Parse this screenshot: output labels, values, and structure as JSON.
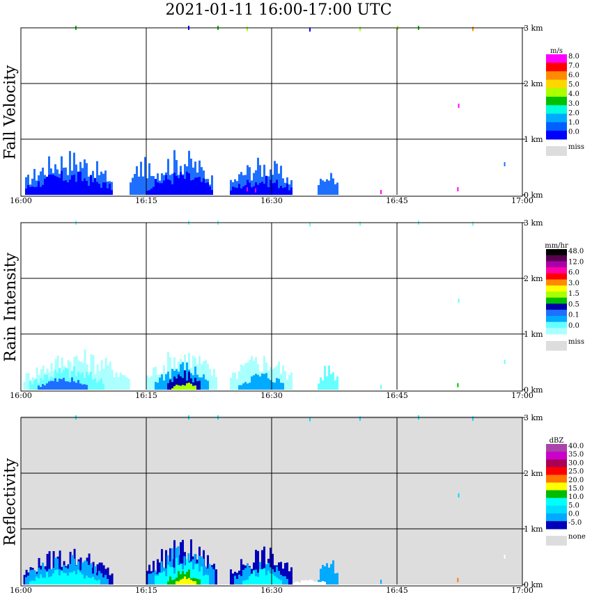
{
  "title": "2021-01-11   16:00-17:00 UTC",
  "chart_data": [
    {
      "type": "heatmap",
      "name": "Fall Velocity",
      "x_range": [
        "16:00",
        "17:00"
      ],
      "x_ticks": [
        "16:00",
        "16:15",
        "16:30",
        "16:45",
        "17:00"
      ],
      "y_ticks": [
        "3 km",
        "2 km",
        "1 km",
        "0 km"
      ],
      "ylim": [
        0,
        3.5
      ],
      "background": "#ffffff",
      "colorbar": {
        "unit": "m/s",
        "labels": [
          "8.0",
          "7.0",
          "6.0",
          "5.0",
          "4.0",
          "3.0",
          "2.0",
          "1.0",
          "0.0"
        ],
        "colors": [
          "#ff00ff",
          "#ff0000",
          "#ff8c00",
          "#ffd700",
          "#aaff00",
          "#00c000",
          "#00ffdd",
          "#00aaff",
          "#0060ff",
          "#0000ff"
        ],
        "extra_label": "miss",
        "extra_color": "#dddddd"
      },
      "blobs": [
        {
          "t0": 0.5,
          "t1": 10.8,
          "h": 0.85,
          "color": "#1f6fff"
        },
        {
          "t0": 0.5,
          "t1": 10.8,
          "h": 0.45,
          "color": "#0000ff"
        },
        {
          "t0": 13.0,
          "t1": 16.0,
          "h": 0.7,
          "color": "#1f6fff"
        },
        {
          "t0": 15.0,
          "t1": 23.0,
          "h": 0.85,
          "color": "#1f6fff"
        },
        {
          "t0": 15.0,
          "t1": 23.0,
          "h": 0.45,
          "color": "#0000ff"
        },
        {
          "t0": 25.0,
          "t1": 32.5,
          "h": 0.7,
          "color": "#1f6fff"
        },
        {
          "t0": 25.0,
          "t1": 32.5,
          "h": 0.35,
          "color": "#0000ff"
        },
        {
          "t0": 35.5,
          "t1": 38.0,
          "h": 0.5,
          "color": "#1f6fff"
        }
      ],
      "specks": [
        {
          "t": 6.5,
          "h": 3.0,
          "color": "#00c000"
        },
        {
          "t": 20.0,
          "h": 3.0,
          "color": "#0000ff"
        },
        {
          "t": 23.5,
          "h": 3.0,
          "color": "#00c000"
        },
        {
          "t": 27.0,
          "h": 2.98,
          "color": "#aaff00"
        },
        {
          "t": 34.5,
          "h": 2.97,
          "color": "#0000ff"
        },
        {
          "t": 40.5,
          "h": 2.98,
          "color": "#aaff00"
        },
        {
          "t": 45.0,
          "h": 3.0,
          "color": "#aaff00"
        },
        {
          "t": 47.5,
          "h": 3.0,
          "color": "#00c000"
        },
        {
          "t": 52.3,
          "h": 1.6,
          "color": "#ff00ff"
        },
        {
          "t": 54.0,
          "h": 2.98,
          "color": "#ff8c00"
        },
        {
          "t": 57.8,
          "h": 0.55,
          "color": "#1f6fff"
        },
        {
          "t": 43.0,
          "h": 0.05,
          "color": "#ff00ff"
        },
        {
          "t": 52.2,
          "h": 0.1,
          "color": "#ff00ff"
        },
        {
          "t": 27.0,
          "h": 0.1,
          "color": "#ff00ff"
        },
        {
          "t": 28.0,
          "h": 0.08,
          "color": "#ff00ff"
        }
      ]
    },
    {
      "type": "heatmap",
      "name": "Rain Intensity",
      "x_range": [
        "16:00",
        "17:00"
      ],
      "x_ticks": [
        "16:00",
        "16:15",
        "16:30",
        "16:45",
        "17:00"
      ],
      "y_ticks": [
        "3 km",
        "2 km",
        "1 km",
        "0 km"
      ],
      "ylim": [
        0,
        3.5
      ],
      "background": "#ffffff",
      "colorbar": {
        "unit": "mm/hr",
        "labels": [
          "48.0",
          "12.0",
          "6.0",
          "3.0",
          "1.5",
          "0.5",
          "0.1",
          "0.0"
        ],
        "colors": [
          "#000000",
          "#5a0050",
          "#aa00aa",
          "#ff00aa",
          "#ff0000",
          "#ff8c00",
          "#ffff00",
          "#aaff00",
          "#00c000",
          "#0000aa",
          "#1f6fff",
          "#00aaff",
          "#66ffff",
          "#aaffff"
        ],
        "extra_label": "miss",
        "extra_color": "#dddddd"
      },
      "blobs": [
        {
          "t0": 0.3,
          "t1": 13.0,
          "h": 0.75,
          "color": "#aaffff"
        },
        {
          "t0": 1.0,
          "t1": 10.0,
          "h": 0.45,
          "color": "#66ffff"
        },
        {
          "t0": 2.0,
          "t1": 8.0,
          "h": 0.25,
          "color": "#1f6fff"
        },
        {
          "t0": 15.0,
          "t1": 23.5,
          "h": 0.8,
          "color": "#aaffff"
        },
        {
          "t0": 16.0,
          "t1": 22.5,
          "h": 0.55,
          "color": "#00aaff"
        },
        {
          "t0": 17.5,
          "t1": 21.5,
          "h": 0.35,
          "color": "#0000aa"
        },
        {
          "t0": 18.0,
          "t1": 21.0,
          "h": 0.15,
          "color": "#aaff00"
        },
        {
          "t0": 25.0,
          "t1": 32.5,
          "h": 0.7,
          "color": "#aaffff"
        },
        {
          "t0": 26.0,
          "t1": 31.5,
          "h": 0.35,
          "color": "#00aaff"
        },
        {
          "t0": 35.5,
          "t1": 38.0,
          "h": 0.5,
          "color": "#66ffff"
        }
      ],
      "specks": [
        {
          "t": 6.5,
          "h": 3.0,
          "color": "#66ffff"
        },
        {
          "t": 20.0,
          "h": 3.0,
          "color": "#66ffff"
        },
        {
          "t": 23.5,
          "h": 3.0,
          "color": "#66ffff"
        },
        {
          "t": 34.5,
          "h": 2.97,
          "color": "#66ffff"
        },
        {
          "t": 40.5,
          "h": 2.98,
          "color": "#66ffff"
        },
        {
          "t": 47.5,
          "h": 3.0,
          "color": "#66ffff"
        },
        {
          "t": 54.0,
          "h": 2.98,
          "color": "#66ffff"
        },
        {
          "t": 52.3,
          "h": 1.6,
          "color": "#66ffff"
        },
        {
          "t": 57.8,
          "h": 0.5,
          "color": "#66ffff"
        },
        {
          "t": 43.0,
          "h": 0.05,
          "color": "#66ffff"
        },
        {
          "t": 52.2,
          "h": 0.08,
          "color": "#00c000"
        }
      ]
    },
    {
      "type": "heatmap",
      "name": "Reflectivity",
      "x_range": [
        "16:00",
        "17:00"
      ],
      "x_ticks": [
        "16:00",
        "16:15",
        "16:30",
        "16:45",
        "17:00"
      ],
      "y_ticks": [
        "3 km",
        "2 km",
        "1 km",
        "0 km"
      ],
      "ylim": [
        0,
        3.5
      ],
      "background": "#dddddd",
      "colorbar": {
        "unit": "dBZ",
        "labels": [
          "40.0",
          "35.0",
          "30.0",
          "25.0",
          "20.0",
          "15.0",
          "10.0",
          "5.0",
          "0.0",
          "-5.0"
        ],
        "colors": [
          "#aa44aa",
          "#cc00cc",
          "#aa0055",
          "#ff0000",
          "#ff7700",
          "#ffff00",
          "#00bb00",
          "#00ffff",
          "#00ddff",
          "#00aaff",
          "#0000bb"
        ],
        "extra_label": "none",
        "extra_color": "#dddddd"
      },
      "blobs": [
        {
          "t0": 0.3,
          "t1": 10.8,
          "h": 0.7,
          "color": "#0000bb"
        },
        {
          "t0": 0.5,
          "t1": 10.5,
          "h": 0.55,
          "color": "#00aaff"
        },
        {
          "t0": 1.0,
          "t1": 9.5,
          "h": 0.3,
          "color": "#00ffff"
        },
        {
          "t0": 15.0,
          "t1": 23.5,
          "h": 0.85,
          "color": "#0000bb"
        },
        {
          "t0": 15.2,
          "t1": 23.0,
          "h": 0.7,
          "color": "#00aaff"
        },
        {
          "t0": 16.0,
          "t1": 22.5,
          "h": 0.5,
          "color": "#00ffff"
        },
        {
          "t0": 17.5,
          "t1": 21.5,
          "h": 0.3,
          "color": "#00bb00"
        },
        {
          "t0": 18.5,
          "t1": 21.0,
          "h": 0.15,
          "color": "#ffff00"
        },
        {
          "t0": 25.0,
          "t1": 32.5,
          "h": 0.7,
          "color": "#0000bb"
        },
        {
          "t0": 25.5,
          "t1": 32.0,
          "h": 0.5,
          "color": "#00aaff"
        },
        {
          "t0": 26.5,
          "t1": 31.0,
          "h": 0.3,
          "color": "#00ffff"
        },
        {
          "t0": 35.5,
          "t1": 38.0,
          "h": 0.5,
          "color": "#00aaff"
        },
        {
          "t0": 32.5,
          "t1": 36.5,
          "h": 0.1,
          "color": "#ffffff"
        }
      ],
      "specks": [
        {
          "t": 6.5,
          "h": 3.0,
          "color": "#00ddff"
        },
        {
          "t": 20.0,
          "h": 3.0,
          "color": "#00ddff"
        },
        {
          "t": 23.5,
          "h": 3.0,
          "color": "#00ddff"
        },
        {
          "t": 34.5,
          "h": 2.97,
          "color": "#00ddff"
        },
        {
          "t": 40.5,
          "h": 2.98,
          "color": "#00ddff"
        },
        {
          "t": 47.5,
          "h": 3.0,
          "color": "#00ddff"
        },
        {
          "t": 54.0,
          "h": 2.98,
          "color": "#00ddff"
        },
        {
          "t": 52.3,
          "h": 1.6,
          "color": "#00ddff"
        },
        {
          "t": 57.8,
          "h": 0.5,
          "color": "#ffffff"
        },
        {
          "t": 43.0,
          "h": 0.05,
          "color": "#00aaff"
        },
        {
          "t": 52.2,
          "h": 0.08,
          "color": "#ff7700"
        }
      ]
    }
  ]
}
